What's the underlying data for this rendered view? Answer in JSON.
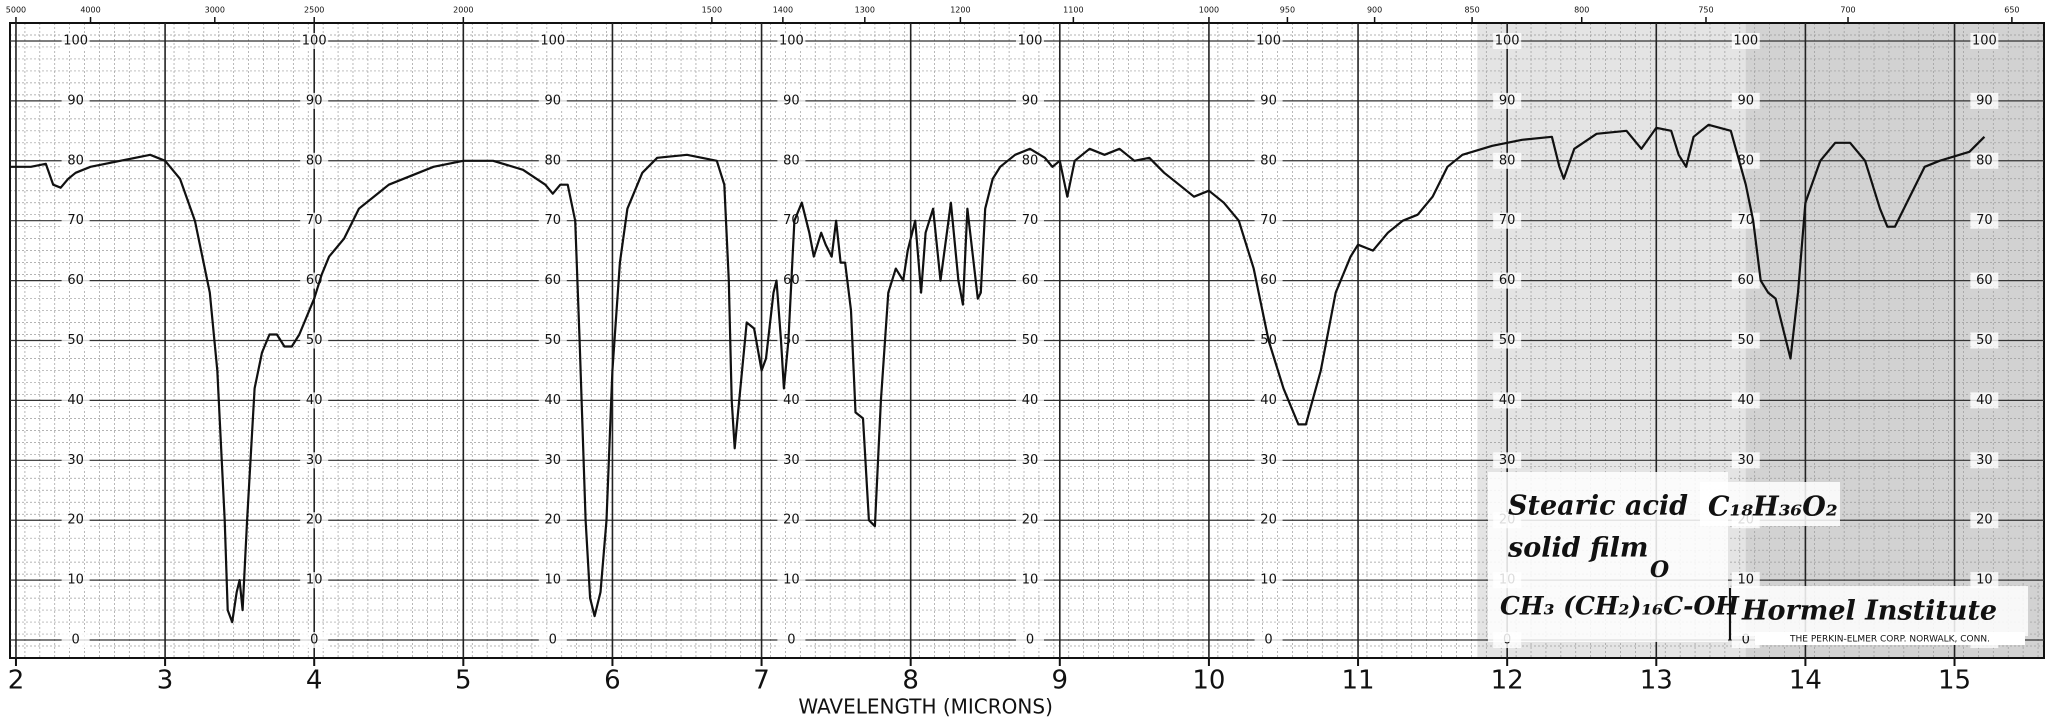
{
  "chart_data": {
    "type": "line",
    "x_label": "WAVELENGTH (MICRONS)",
    "xlim": [
      1.96,
      15.6
    ],
    "ylim": [
      -3,
      103
    ],
    "xticks": [
      2,
      3,
      4,
      5,
      6,
      7,
      8,
      9,
      10,
      11,
      12,
      13,
      14,
      15
    ],
    "yticks": [
      0,
      10,
      20,
      30,
      40,
      50,
      60,
      70,
      80,
      90,
      100
    ],
    "top_xticks": [
      5000,
      4000,
      3000,
      2500,
      2000,
      1500,
      1400,
      1300,
      1200,
      1100,
      1000,
      950,
      900,
      850,
      800,
      750,
      700,
      650
    ],
    "grid": true,
    "color": "#111111",
    "x": [
      1.96,
      2.1,
      2.2,
      2.25,
      2.3,
      2.35,
      2.4,
      2.5,
      2.7,
      2.9,
      3.0,
      3.1,
      3.2,
      3.3,
      3.35,
      3.4,
      3.42,
      3.45,
      3.48,
      3.5,
      3.52,
      3.55,
      3.6,
      3.65,
      3.7,
      3.75,
      3.8,
      3.85,
      3.9,
      4.0,
      4.05,
      4.1,
      4.2,
      4.3,
      4.5,
      4.8,
      5.0,
      5.2,
      5.4,
      5.55,
      5.6,
      5.65,
      5.7,
      5.75,
      5.78,
      5.82,
      5.85,
      5.88,
      5.92,
      5.96,
      6.0,
      6.05,
      6.1,
      6.2,
      6.3,
      6.5,
      6.7,
      6.75,
      6.78,
      6.8,
      6.82,
      6.85,
      6.9,
      6.95,
      7.0,
      7.03,
      7.08,
      7.1,
      7.13,
      7.15,
      7.18,
      7.22,
      7.27,
      7.32,
      7.35,
      7.4,
      7.43,
      7.47,
      7.5,
      7.53,
      7.56,
      7.6,
      7.63,
      7.68,
      7.72,
      7.76,
      7.8,
      7.85,
      7.9,
      7.95,
      7.98,
      8.03,
      8.07,
      8.1,
      8.15,
      8.2,
      8.27,
      8.32,
      8.35,
      8.38,
      8.45,
      8.47,
      8.5,
      8.55,
      8.6,
      8.7,
      8.8,
      8.9,
      8.95,
      9.0,
      9.05,
      9.1,
      9.2,
      9.3,
      9.4,
      9.5,
      9.6,
      9.7,
      9.8,
      9.9,
      10.0,
      10.1,
      10.2,
      10.3,
      10.4,
      10.5,
      10.6,
      10.65,
      10.75,
      10.85,
      10.95,
      11.0,
      11.1,
      11.2,
      11.3,
      11.4,
      11.5,
      11.6,
      11.7,
      11.9,
      12.1,
      12.3,
      12.35,
      12.38,
      12.45,
      12.6,
      12.8,
      12.9,
      13.0,
      13.1,
      13.15,
      13.2,
      13.25,
      13.35,
      13.5,
      13.6,
      13.65,
      13.7,
      13.75,
      13.8,
      13.85,
      13.9,
      13.95,
      14.0,
      14.1,
      14.2,
      14.3,
      14.4,
      14.5,
      14.55,
      14.6,
      14.7,
      14.8,
      14.9,
      15.1,
      15.2
    ],
    "values": [
      79,
      79,
      79.5,
      76,
      75.5,
      77,
      78,
      79,
      80,
      81,
      80,
      77,
      70,
      58,
      45,
      20,
      5,
      3,
      8,
      10,
      5,
      20,
      42,
      48,
      51,
      51,
      49,
      49,
      51,
      57,
      61,
      64,
      67,
      72,
      76,
      79,
      80,
      80,
      78.5,
      76,
      74.5,
      76,
      76,
      70,
      50,
      20,
      7,
      4,
      8,
      20,
      45,
      63,
      72,
      78,
      80.5,
      81,
      80,
      76,
      60,
      40,
      32,
      40,
      53,
      52,
      45,
      47,
      58,
      60,
      50,
      42,
      50,
      70,
      73,
      68,
      64,
      68,
      66,
      64,
      70,
      63,
      63,
      55,
      38,
      37,
      20,
      19,
      40,
      58,
      62,
      60,
      65,
      70,
      58,
      68,
      72,
      60,
      73,
      60,
      56,
      72,
      57,
      58,
      72,
      77,
      79,
      81,
      82,
      80.5,
      79,
      80,
      74,
      80,
      82,
      81,
      82,
      80,
      80.5,
      78,
      76,
      74,
      75,
      73,
      70,
      62,
      50,
      42,
      36,
      36,
      45,
      58,
      64,
      66,
      65,
      68,
      70,
      71,
      74,
      79,
      81,
      82.5,
      83.5,
      84,
      79,
      77,
      82,
      84.5,
      85,
      82,
      85.5,
      85,
      81,
      79,
      84,
      86,
      85,
      76,
      70,
      60,
      58,
      57,
      52,
      47,
      58,
      73,
      80,
      83,
      83,
      80,
      72,
      69,
      69,
      74,
      79,
      80,
      81.5,
      84
    ],
    "annotations": {
      "name": "Stearic acid",
      "state": "solid film",
      "formula": "CH₃ (CH₂)₁₆C-OH",
      "carbonyl": "O",
      "molecular_formula": "C₁₈H₃₆O₂",
      "source": "Hormel Institute",
      "maker": "THE PERKIN-ELMER CORP. NORWALK, CONN."
    }
  }
}
